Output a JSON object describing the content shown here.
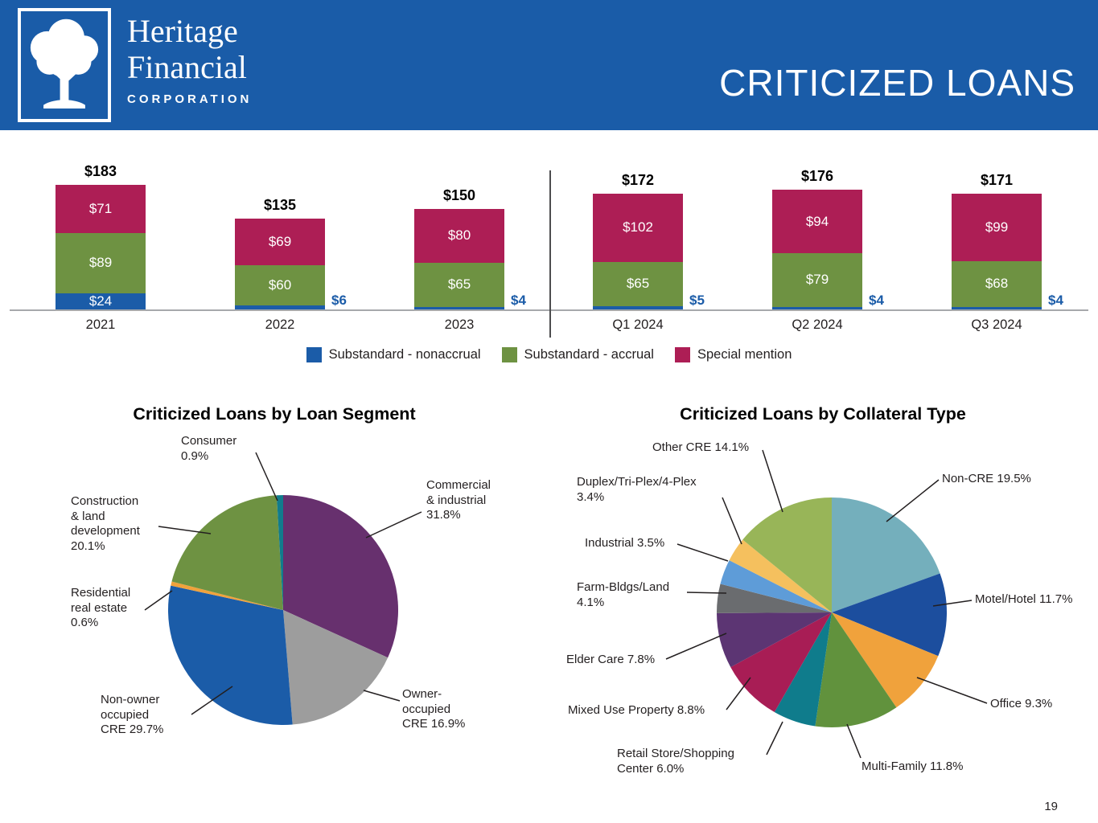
{
  "header": {
    "logo": {
      "line1": "Heritage",
      "line2": "Financial",
      "line3": "CORPORATION"
    },
    "title": "CRITICIZED LOANS"
  },
  "colors": {
    "header_blue": "#1A5CA8",
    "nonaccrual_blue": "#1B5CA8",
    "accrual_green": "#6E9242",
    "special_mention_crimson": "#AD1E55"
  },
  "chart_data": [
    {
      "id": "criticized-loans-trend",
      "type": "bar",
      "stacked": true,
      "categories": [
        "2021",
        "2022",
        "2023",
        "Q1 2024",
        "Q2 2024",
        "Q3 2024"
      ],
      "series": [
        {
          "name": "Substandard - nonaccrual",
          "color": "#1B5CA8",
          "values": [
            24,
            6,
            4,
            5,
            4,
            4
          ]
        },
        {
          "name": "Substandard - accrual",
          "color": "#6E9242",
          "values": [
            89,
            60,
            65,
            65,
            79,
            68
          ]
        },
        {
          "name": "Special mention",
          "color": "#AD1E55",
          "values": [
            71,
            69,
            80,
            102,
            94,
            99
          ]
        }
      ],
      "totals": [
        "$183",
        "$135",
        "$150",
        "$172",
        "$176",
        "$171"
      ],
      "value_prefix": "$",
      "divider_after_index": 2,
      "legend_position": "bottom",
      "grid": false
    },
    {
      "id": "loan-segment",
      "type": "pie",
      "title": "Criticized Loans by Loan Segment",
      "slices": [
        {
          "label": "Commercial & industrial",
          "pct": 31.8,
          "color": "#67306E",
          "display": "Commercial\n& industrial\n31.8%"
        },
        {
          "label": "Owner-occupied CRE",
          "pct": 16.9,
          "color": "#9D9D9D",
          "display": "Owner-\noccupied\nCRE 16.9%"
        },
        {
          "label": "Non-owner occupied CRE",
          "pct": 29.7,
          "color": "#1B5CA8",
          "display": "Non-owner\noccupied\nCRE 29.7%"
        },
        {
          "label": "Residential real estate",
          "pct": 0.6,
          "color": "#F0A23C",
          "display": "Residential\nreal estate\n0.6%"
        },
        {
          "label": "Construction & land development",
          "pct": 20.1,
          "color": "#6E9242",
          "display": "Construction\n& land\ndevelopment\n20.1%"
        },
        {
          "label": "Consumer",
          "pct": 0.9,
          "color": "#117C8C",
          "display": "Consumer\n0.9%"
        }
      ]
    },
    {
      "id": "collateral-type",
      "type": "pie",
      "title": "Criticized Loans by Collateral Type",
      "slices": [
        {
          "label": "Non-CRE",
          "pct": 19.5,
          "color": "#74AFBC",
          "display": "Non-CRE 19.5%"
        },
        {
          "label": "Motel/Hotel",
          "pct": 11.7,
          "color": "#1C4E9E",
          "display": "Motel/Hotel 11.7%"
        },
        {
          "label": "Office",
          "pct": 9.3,
          "color": "#F0A23C",
          "display": "Office 9.3%"
        },
        {
          "label": "Multi-Family",
          "pct": 11.8,
          "color": "#61923D",
          "display": "Multi-Family 11.8%"
        },
        {
          "label": "Retail Store/Shopping Center",
          "pct": 6.0,
          "color": "#0F7C8C",
          "display": "Retail Store/Shopping\nCenter 6.0%"
        },
        {
          "label": "Mixed Use Property",
          "pct": 8.8,
          "color": "#A81D55",
          "display": "Mixed Use Property 8.8%"
        },
        {
          "label": "Elder Care",
          "pct": 7.8,
          "color": "#5C3573",
          "display": "Elder Care 7.8%"
        },
        {
          "label": "Farm-Bldgs/Land",
          "pct": 4.1,
          "color": "#6A6C6F",
          "display": "Farm-Bldgs/Land\n4.1%"
        },
        {
          "label": "Industrial",
          "pct": 3.5,
          "color": "#5E9CD8",
          "display": "Industrial 3.5%"
        },
        {
          "label": "Duplex/Tri-Plex/4-Plex",
          "pct": 3.4,
          "color": "#F5C05E",
          "display": "Duplex/Tri-Plex/4-Plex\n3.4%"
        },
        {
          "label": "Other CRE",
          "pct": 14.1,
          "color": "#98B558",
          "display": "Other CRE 14.1%"
        }
      ]
    }
  ],
  "page_number": "19"
}
